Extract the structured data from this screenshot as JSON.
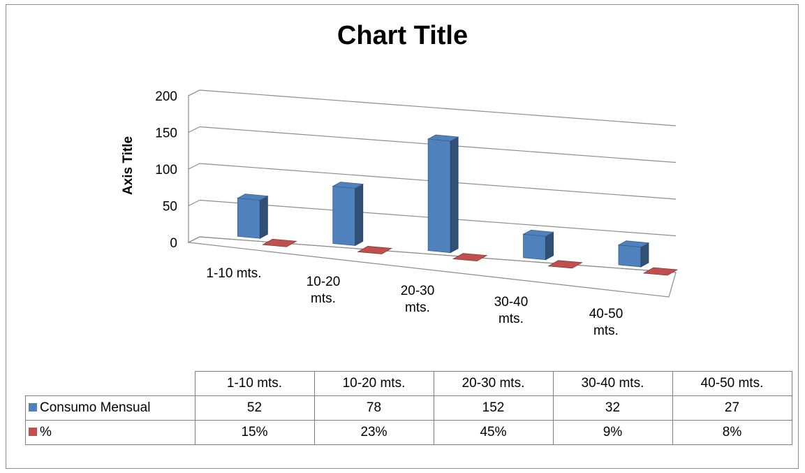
{
  "chart_data": {
    "type": "bar",
    "style": "3d-column",
    "title": "Chart Title",
    "ylabel": "Axis Title",
    "xlabel": "",
    "categories": [
      "1-10 mts.",
      "10-20 mts.",
      "20-30 mts.",
      "30-40 mts.",
      "40-50 mts."
    ],
    "category_lines": [
      [
        "1-10 mts."
      ],
      [
        "10-20",
        "mts."
      ],
      [
        "20-30",
        "mts."
      ],
      [
        "30-40",
        "mts."
      ],
      [
        "40-50",
        "mts."
      ]
    ],
    "series": [
      {
        "name": "Consumo Mensual",
        "values": [
          52,
          78,
          152,
          32,
          27
        ],
        "color": "#4f81bd",
        "display": [
          "52",
          "78",
          "152",
          "32",
          "27"
        ]
      },
      {
        "name": "%",
        "values": [
          0.15,
          0.23,
          0.45,
          0.09,
          0.08
        ],
        "color": "#c0504d",
        "display": [
          "15%",
          "23%",
          "45%",
          "9%",
          "8%"
        ]
      }
    ],
    "yticks": [
      "200",
      "150",
      "100",
      "50",
      "0"
    ],
    "ylim": [
      0,
      200
    ],
    "grid": true,
    "legend": "data table"
  }
}
